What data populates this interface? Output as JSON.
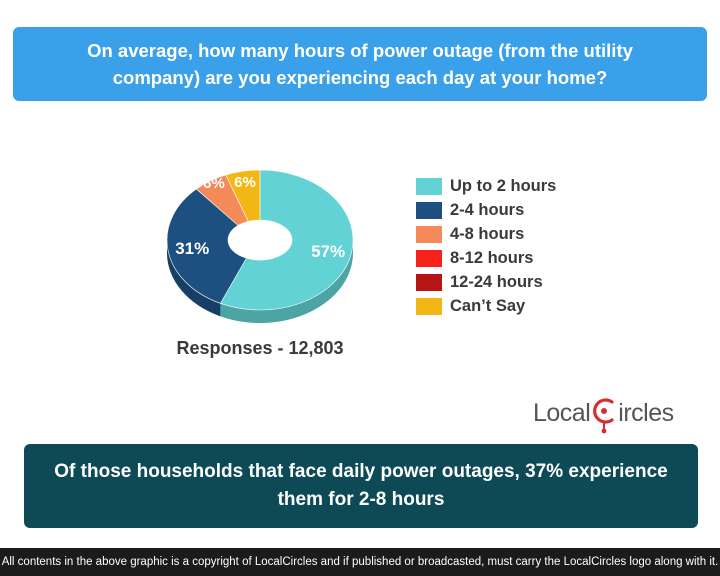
{
  "header": {
    "question": "On average, how many hours of power outage (from the utility company) are you experiencing each day at your home?"
  },
  "chart_data": {
    "type": "pie",
    "style": "3D donut",
    "categories": [
      "Up to 2 hours",
      "2-4 hours",
      "4-8 hours",
      "8-12 hours",
      "12-24 hours",
      "Can’t Say"
    ],
    "values": [
      57,
      31,
      6,
      0,
      0,
      6
    ],
    "labels": [
      "57%",
      "31%",
      "6%",
      "",
      "",
      "6%"
    ],
    "colors": [
      "#62d2d4",
      "#1d4f80",
      "#f4895a",
      "#f8221a",
      "#b51515",
      "#f3b715"
    ],
    "legend_position": "right"
  },
  "responses": "Responses - 12,803",
  "logo": {
    "part1": "Local",
    "part2": "ircles"
  },
  "takeaway": "Of those households that face daily power outages, 37% experience them for 2-8 hours",
  "footer": "All contents in the above graphic is a copyright of LocalCircles and if published or broadcasted, must carry the LocalCircles logo along with it."
}
